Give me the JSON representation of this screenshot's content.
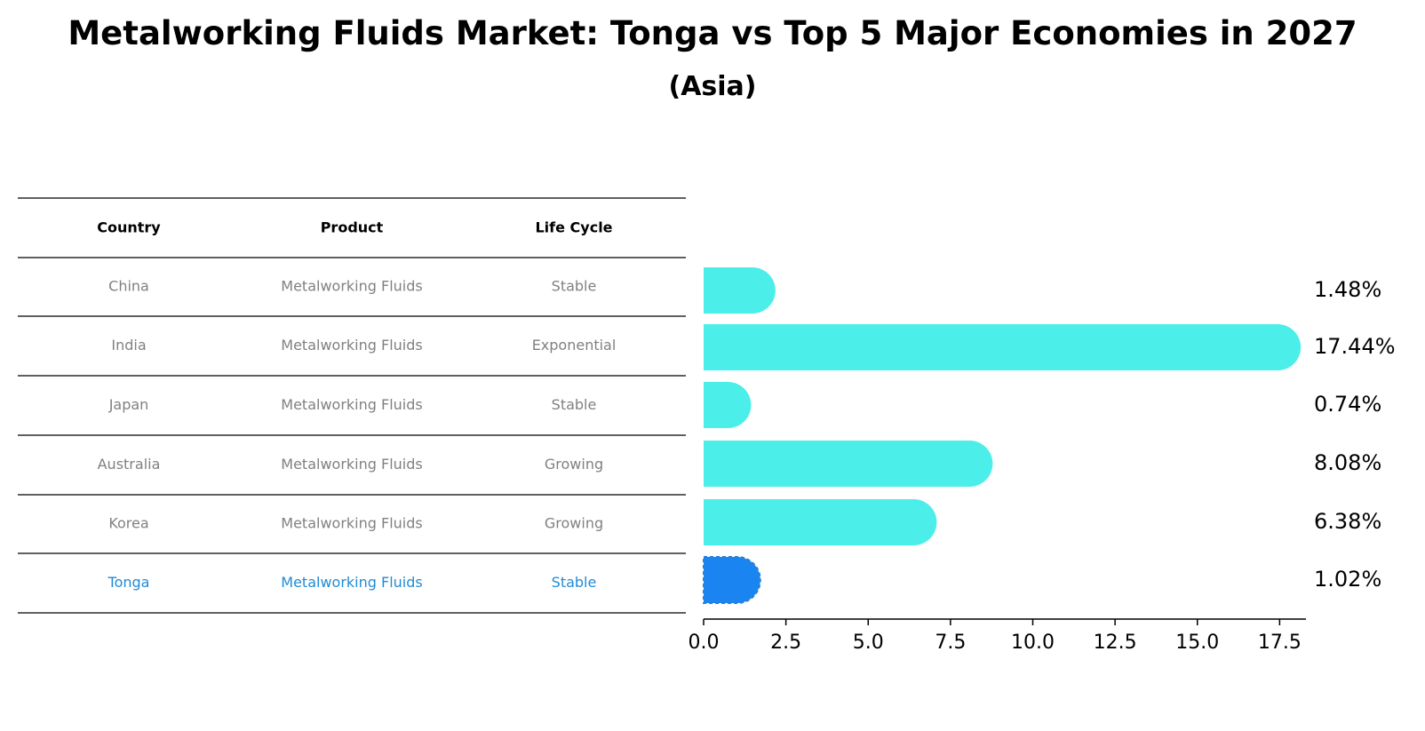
{
  "chart_data": {
    "type": "bar",
    "orientation": "horizontal",
    "title": "Metalworking Fluids Market: Tonga vs Top 5 Major Economies in 2027",
    "subtitle": "(Asia)",
    "table": {
      "headers": [
        "Country",
        "Product",
        "Life Cycle"
      ],
      "rows": [
        {
          "country": "China",
          "product": "Metalworking Fluids",
          "life_cycle": "Stable"
        },
        {
          "country": "India",
          "product": "Metalworking Fluids",
          "life_cycle": "Exponential"
        },
        {
          "country": "Japan",
          "product": "Metalworking Fluids",
          "life_cycle": "Stable"
        },
        {
          "country": "Australia",
          "product": "Metalworking Fluids",
          "life_cycle": "Growing"
        },
        {
          "country": "Korea",
          "product": "Metalworking Fluids",
          "life_cycle": "Growing"
        },
        {
          "country": "Tonga",
          "product": "Metalworking Fluids",
          "life_cycle": "Stable"
        }
      ]
    },
    "categories": [
      "China",
      "India",
      "Japan",
      "Australia",
      "Korea",
      "Tonga"
    ],
    "values": [
      1.48,
      17.44,
      0.74,
      8.08,
      6.38,
      1.02
    ],
    "labels": [
      "1.48%",
      "17.44%",
      "0.74%",
      "8.08%",
      "6.38%",
      "1.02%"
    ],
    "highlight": "Tonga",
    "xlim": [
      0,
      18.3
    ],
    "xticks": [
      "0.0",
      "2.5",
      "5.0",
      "7.5",
      "10.0",
      "12.5",
      "15.0",
      "17.5"
    ],
    "xtick_values": [
      0,
      2.5,
      5,
      7.5,
      10,
      12.5,
      15,
      17.5
    ],
    "colors": {
      "bar": "#4beee9",
      "highlight_bar": "#1a85f0",
      "highlight_text": "#1f8bd6",
      "text_muted": "#808080"
    }
  }
}
